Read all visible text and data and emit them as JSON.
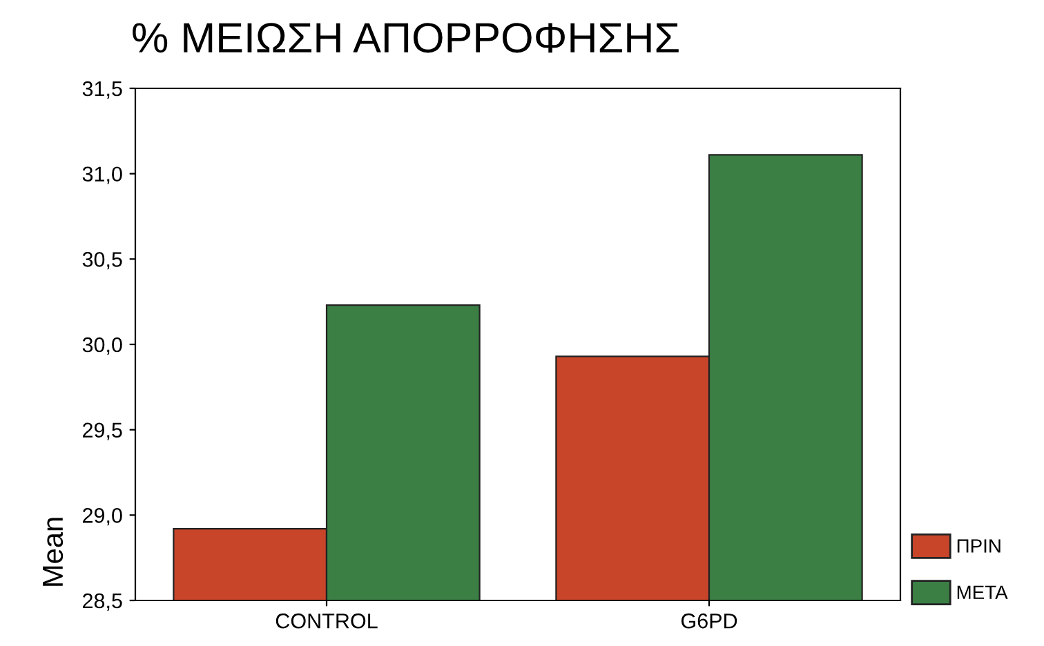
{
  "chart_data": {
    "type": "bar",
    "title": "% ΜΕΙΩΣΗ ΑΠΟΡΡΟΦΗΣΗΣ",
    "ylabel": "Mean",
    "categories": [
      "CONTROL",
      "G6PD"
    ],
    "series": [
      {
        "name": "ΠΡΙΝ",
        "color": "#c8452a",
        "values": [
          28.92,
          29.93
        ]
      },
      {
        "name": "ΜΕΤΑ",
        "color": "#3b7f45",
        "values": [
          30.23,
          31.11
        ]
      }
    ],
    "ylim": [
      28.5,
      31.5
    ],
    "yticks": [
      {
        "value": 28.5,
        "label": "28,5"
      },
      {
        "value": 29.0,
        "label": "29,0"
      },
      {
        "value": 29.5,
        "label": "29,5"
      },
      {
        "value": 30.0,
        "label": "30,0"
      },
      {
        "value": 30.5,
        "label": "30,5"
      },
      {
        "value": 31.0,
        "label": "31,0"
      },
      {
        "value": 31.5,
        "label": "31,5"
      }
    ],
    "grid": false,
    "legend": "bottom right"
  }
}
